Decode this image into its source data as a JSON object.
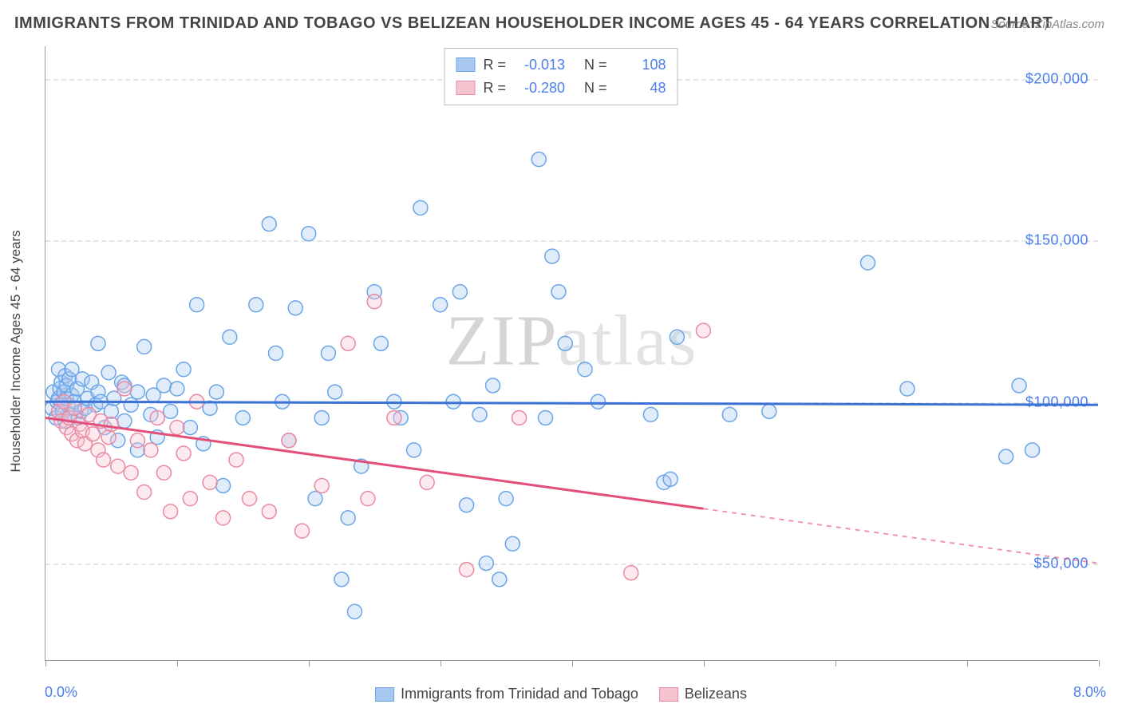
{
  "title": "IMMIGRANTS FROM TRINIDAD AND TOBAGO VS BELIZEAN HOUSEHOLDER INCOME AGES 45 - 64 YEARS CORRELATION CHART",
  "source": "Source: ZipAtlas.com",
  "watermark_a": "ZIP",
  "watermark_b": "atlas",
  "y_axis_label": "Householder Income Ages 45 - 64 years",
  "xlim": [
    0.0,
    8.0
  ],
  "ylim": [
    20000,
    210000
  ],
  "x_tick_positions": [
    0,
    1,
    2,
    3,
    4,
    5,
    6,
    7,
    8
  ],
  "x_range_labels": {
    "left": "0.0%",
    "right": "8.0%"
  },
  "y_ticks": [
    {
      "value": 50000,
      "label": "$50,000"
    },
    {
      "value": 100000,
      "label": "$100,000"
    },
    {
      "value": 150000,
      "label": "$150,000"
    },
    {
      "value": 200000,
      "label": "$200,000"
    }
  ],
  "grid_color": "#e5e5e5",
  "background_color": "#ffffff",
  "series": [
    {
      "name": "Immigrants from Trinidad and Tobago",
      "fill": "#a8c8f0",
      "stroke": "#6aa5e8",
      "line_color": "#3b72d6",
      "R": "-0.013",
      "N": "108",
      "trend": {
        "x1": 0.0,
        "y1": 100000,
        "x2": 8.0,
        "y2": 99000,
        "solid_to_x": 8.0
      },
      "marker_radius": 9,
      "points": [
        [
          0.05,
          98000
        ],
        [
          0.06,
          103000
        ],
        [
          0.08,
          95000
        ],
        [
          0.09,
          100000
        ],
        [
          0.1,
          101000
        ],
        [
          0.1,
          110000
        ],
        [
          0.11,
          104000
        ],
        [
          0.12,
          99000
        ],
        [
          0.12,
          106000
        ],
        [
          0.13,
          97000
        ],
        [
          0.14,
          103000
        ],
        [
          0.15,
          108000
        ],
        [
          0.15,
          94000
        ],
        [
          0.16,
          101000
        ],
        [
          0.16,
          105000
        ],
        [
          0.17,
          99000
        ],
        [
          0.18,
          107000
        ],
        [
          0.19,
          96000
        ],
        [
          0.2,
          102000
        ],
        [
          0.2,
          110000
        ],
        [
          0.22,
          100000
        ],
        [
          0.24,
          104000
        ],
        [
          0.25,
          95000
        ],
        [
          0.27,
          97000
        ],
        [
          0.28,
          107000
        ],
        [
          0.3,
          98000
        ],
        [
          0.32,
          101000
        ],
        [
          0.35,
          106000
        ],
        [
          0.38,
          99000
        ],
        [
          0.4,
          103000
        ],
        [
          0.42,
          100000
        ],
        [
          0.45,
          92000
        ],
        [
          0.48,
          109000
        ],
        [
          0.5,
          97000
        ],
        [
          0.52,
          101000
        ],
        [
          0.55,
          88000
        ],
        [
          0.58,
          106000
        ],
        [
          0.6,
          94000
        ],
        [
          0.6,
          105000
        ],
        [
          0.65,
          99000
        ],
        [
          0.7,
          103000
        ],
        [
          0.7,
          85000
        ],
        [
          0.75,
          117000
        ],
        [
          0.8,
          96000
        ],
        [
          0.82,
          102000
        ],
        [
          0.85,
          89000
        ],
        [
          0.4,
          118000
        ],
        [
          0.9,
          105000
        ],
        [
          0.95,
          97000
        ],
        [
          1.0,
          104000
        ],
        [
          1.05,
          110000
        ],
        [
          1.1,
          92000
        ],
        [
          1.15,
          130000
        ],
        [
          1.2,
          87000
        ],
        [
          1.25,
          98000
        ],
        [
          1.3,
          103000
        ],
        [
          1.35,
          74000
        ],
        [
          1.4,
          120000
        ],
        [
          1.5,
          95000
        ],
        [
          1.6,
          130000
        ],
        [
          1.7,
          155000
        ],
        [
          1.75,
          115000
        ],
        [
          1.8,
          100000
        ],
        [
          1.85,
          88000
        ],
        [
          1.9,
          129000
        ],
        [
          2.0,
          152000
        ],
        [
          2.05,
          70000
        ],
        [
          2.1,
          95000
        ],
        [
          2.15,
          115000
        ],
        [
          2.2,
          103000
        ],
        [
          2.25,
          45000
        ],
        [
          2.3,
          64000
        ],
        [
          2.35,
          35000
        ],
        [
          2.4,
          80000
        ],
        [
          2.5,
          134000
        ],
        [
          2.55,
          118000
        ],
        [
          2.65,
          100000
        ],
        [
          2.7,
          95000
        ],
        [
          2.8,
          85000
        ],
        [
          2.85,
          160000
        ],
        [
          3.0,
          130000
        ],
        [
          3.1,
          100000
        ],
        [
          3.15,
          134000
        ],
        [
          3.2,
          68000
        ],
        [
          3.3,
          96000
        ],
        [
          3.35,
          50000
        ],
        [
          3.4,
          105000
        ],
        [
          3.45,
          45000
        ],
        [
          3.5,
          70000
        ],
        [
          3.55,
          56000
        ],
        [
          3.75,
          175000
        ],
        [
          3.8,
          95000
        ],
        [
          3.85,
          145000
        ],
        [
          3.9,
          134000
        ],
        [
          3.95,
          118000
        ],
        [
          4.1,
          110000
        ],
        [
          4.2,
          100000
        ],
        [
          4.6,
          96000
        ],
        [
          4.7,
          75000
        ],
        [
          4.8,
          120000
        ],
        [
          4.75,
          76000
        ],
        [
          5.2,
          96000
        ],
        [
          5.5,
          97000
        ],
        [
          6.25,
          143000
        ],
        [
          6.55,
          104000
        ],
        [
          7.3,
          83000
        ],
        [
          7.5,
          85000
        ],
        [
          7.4,
          105000
        ]
      ]
    },
    {
      "name": "Belizeans",
      "fill": "#f6c3d0",
      "stroke": "#e98aa3",
      "line_color": "#e44f7a",
      "R": "-0.280",
      "N": "48",
      "trend": {
        "x1": 0.0,
        "y1": 95000,
        "x2": 8.0,
        "y2": 50000,
        "solid_to_x": 5.0
      },
      "marker_radius": 9,
      "points": [
        [
          0.1,
          97000
        ],
        [
          0.12,
          94000
        ],
        [
          0.14,
          100000
        ],
        [
          0.16,
          92000
        ],
        [
          0.18,
          95000
        ],
        [
          0.2,
          90000
        ],
        [
          0.22,
          98000
        ],
        [
          0.24,
          88000
        ],
        [
          0.26,
          93000
        ],
        [
          0.28,
          91000
        ],
        [
          0.3,
          87000
        ],
        [
          0.33,
          96000
        ],
        [
          0.36,
          90000
        ],
        [
          0.4,
          85000
        ],
        [
          0.42,
          94000
        ],
        [
          0.44,
          82000
        ],
        [
          0.48,
          89000
        ],
        [
          0.5,
          93000
        ],
        [
          0.55,
          80000
        ],
        [
          0.6,
          104000
        ],
        [
          0.65,
          78000
        ],
        [
          0.7,
          88000
        ],
        [
          0.75,
          72000
        ],
        [
          0.8,
          85000
        ],
        [
          0.85,
          95000
        ],
        [
          0.9,
          78000
        ],
        [
          0.95,
          66000
        ],
        [
          1.0,
          92000
        ],
        [
          1.05,
          84000
        ],
        [
          1.1,
          70000
        ],
        [
          1.15,
          100000
        ],
        [
          1.25,
          75000
        ],
        [
          1.35,
          64000
        ],
        [
          1.45,
          82000
        ],
        [
          1.55,
          70000
        ],
        [
          1.7,
          66000
        ],
        [
          1.85,
          88000
        ],
        [
          1.95,
          60000
        ],
        [
          2.1,
          74000
        ],
        [
          2.3,
          118000
        ],
        [
          2.45,
          70000
        ],
        [
          2.5,
          131000
        ],
        [
          2.65,
          95000
        ],
        [
          2.9,
          75000
        ],
        [
          3.2,
          48000
        ],
        [
          3.6,
          95000
        ],
        [
          4.45,
          47000
        ],
        [
          5.0,
          122000
        ]
      ]
    }
  ],
  "legend_bottom": [
    {
      "label": "Immigrants from Trinidad and Tobago",
      "series_index": 0
    },
    {
      "label": "Belizeans",
      "series_index": 1
    }
  ]
}
